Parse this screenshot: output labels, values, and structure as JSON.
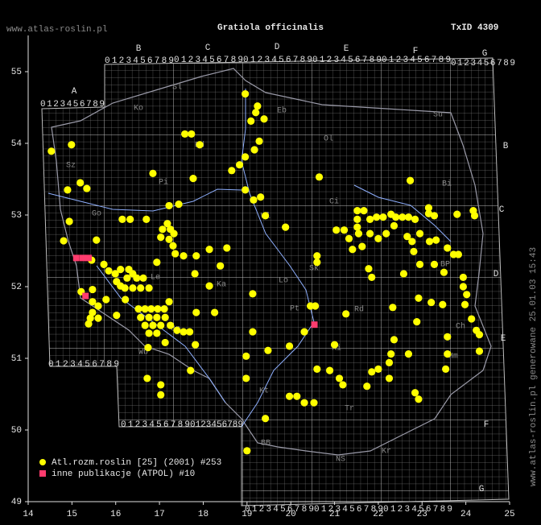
{
  "header": {
    "site": "www.atlas-roslin.pl",
    "title": "Gratiola officinalis",
    "taxon_id": "TxID 4309"
  },
  "footer": {
    "generated": "www.atlas-roslin.pl generowane 25.01.03 15:43"
  },
  "atpol": {
    "letters": [
      "A",
      "B",
      "C",
      "D",
      "E",
      "F",
      "G"
    ],
    "digits": "0123456789"
  },
  "regions": [
    "Sl",
    "Ko",
    "Eb",
    "Su",
    "Ol",
    "Sz",
    "Bd",
    "Pi",
    "Bi",
    "Ci",
    "Go",
    "Wl",
    "Le",
    "Ka",
    "Lo",
    "Sk",
    "BP",
    "Pt",
    "Rd",
    "Ch",
    "Wb",
    "Op",
    "Ki",
    "Hm",
    "Kt",
    "Tr",
    "BB",
    "NS",
    "Kr"
  ],
  "chart_data": {
    "type": "scatter",
    "xlim": [
      14,
      25
    ],
    "ylim": [
      49,
      55.5
    ],
    "xticks": [
      14,
      15,
      16,
      17,
      18,
      19,
      20,
      21,
      22,
      23,
      24,
      25
    ],
    "yticks": [
      49,
      50,
      51,
      52,
      53,
      54,
      55
    ],
    "series": [
      {
        "name": "Atl.rozm.roslin [25] (2001) #253",
        "color": "#ffff00",
        "marker": "circle",
        "x": [
          14.53,
          14.99,
          15.19,
          14.9,
          15.34,
          14.94,
          14.81,
          15.56,
          15.45,
          15.73,
          15.84,
          15.99,
          16.11,
          16.3,
          16.02,
          16.11,
          16.26,
          16.39,
          16.48,
          16.63,
          16.21,
          16.39,
          16.57,
          16.76,
          15.21,
          15.47,
          15.47,
          15.47,
          15.6,
          15.42,
          15.38,
          15.6,
          15.78,
          16.02,
          16.22,
          16.52,
          16.67,
          16.81,
          16.96,
          17.11,
          17.22,
          16.57,
          16.76,
          16.94,
          17.13,
          16.67,
          16.85,
          17.03,
          16.76,
          16.94,
          17.25,
          17.4,
          17.55,
          17.69,
          17.13,
          17.82,
          16.74,
          18.96,
          19.24,
          19.2,
          19.39,
          19.09,
          17.58,
          17.73,
          17.92,
          16.85,
          17.77,
          17.44,
          18.65,
          18.83,
          18.96,
          19.17,
          19.28,
          18.96,
          19.15,
          19.31,
          19.42,
          17.22,
          16.15,
          16.33,
          16.7,
          17.18,
          17.07,
          17.25,
          17.33,
          17.03,
          17.22,
          17.31,
          17.36,
          17.55,
          17.84,
          18.14,
          18.54,
          16.94,
          17.81,
          18.14,
          18.39,
          17.84,
          18.26,
          17.71,
          16.72,
          17.03,
          17.03,
          18.98,
          18.98,
          19.0,
          19.13,
          19.13,
          19.48,
          19.42,
          19.88,
          20.65,
          19.97,
          20.45,
          20.56,
          20.31,
          21.0,
          20.89,
          21.11,
          21.19,
          19.97,
          20.14,
          20.31,
          20.53,
          21.52,
          21.52,
          21.52,
          21.67,
          21.81,
          21.96,
          22.11,
          22.29,
          22.4,
          22.55,
          22.69,
          22.84,
          23.15,
          23.15,
          23.28,
          23.8,
          24.17,
          24.2,
          22.73,
          21.04,
          21.22,
          21.33,
          21.55,
          21.41,
          21.63,
          21.81,
          22.0,
          22.18,
          22.36,
          22.66,
          22.77,
          22.95,
          23.17,
          23.32,
          23.58,
          23.72,
          23.83,
          22.81,
          22.95,
          23.28,
          23.5,
          22.58,
          20.6,
          20.6,
          21.78,
          21.85,
          22.33,
          22.92,
          23.21,
          23.47,
          23.94,
          23.94,
          24.02,
          23.98,
          24.13,
          24.24,
          24.31,
          24.31,
          23.58,
          22.88,
          22.69,
          22.29,
          22.25,
          22.0,
          21.85,
          21.74,
          22.25,
          22.84,
          22.92,
          23.58,
          23.54,
          22.36,
          21.26,
          20.6
        ],
        "values": [
          53.89,
          53.98,
          53.45,
          53.35,
          53.37,
          52.91,
          52.64,
          52.65,
          52.37,
          52.31,
          52.22,
          52.18,
          52.24,
          52.24,
          52.07,
          52.01,
          52.12,
          52.18,
          52.12,
          52.12,
          51.98,
          51.98,
          51.98,
          51.98,
          51.93,
          51.96,
          51.79,
          51.64,
          51.73,
          51.56,
          51.48,
          51.56,
          51.82,
          51.6,
          51.82,
          51.69,
          51.69,
          51.69,
          51.69,
          51.69,
          51.79,
          51.57,
          51.57,
          51.57,
          51.57,
          51.46,
          51.46,
          51.46,
          51.35,
          51.35,
          51.46,
          51.39,
          51.37,
          51.37,
          51.22,
          51.19,
          51.15,
          54.69,
          54.52,
          54.43,
          54.34,
          54.31,
          54.13,
          54.13,
          53.98,
          53.58,
          53.51,
          53.15,
          53.62,
          53.7,
          53.81,
          53.91,
          54.03,
          53.35,
          53.21,
          53.25,
          52.99,
          53.13,
          52.94,
          52.94,
          52.94,
          52.88,
          52.8,
          52.8,
          52.74,
          52.69,
          52.66,
          52.57,
          52.46,
          52.43,
          52.43,
          52.52,
          52.54,
          52.34,
          52.18,
          52.01,
          52.29,
          51.64,
          51.64,
          50.83,
          50.72,
          50.63,
          50.49,
          51.03,
          50.72,
          49.71,
          51.37,
          51.9,
          51.11,
          50.16,
          52.83,
          53.53,
          51.17,
          51.73,
          51.73,
          51.37,
          51.19,
          50.83,
          50.72,
          50.63,
          50.47,
          50.47,
          50.38,
          50.38,
          53.06,
          52.94,
          52.83,
          53.06,
          52.94,
          52.97,
          52.97,
          53.01,
          52.97,
          52.97,
          52.97,
          52.94,
          53.1,
          53.02,
          52.99,
          53.01,
          53.06,
          52.99,
          53.48,
          52.79,
          52.79,
          52.67,
          52.74,
          52.52,
          52.56,
          52.74,
          52.67,
          52.74,
          52.85,
          52.7,
          52.63,
          52.74,
          52.63,
          52.65,
          52.54,
          52.45,
          52.45,
          52.49,
          52.31,
          52.31,
          52.2,
          52.18,
          52.43,
          52.34,
          52.25,
          52.13,
          51.71,
          51.84,
          51.78,
          51.75,
          52.13,
          52.0,
          51.89,
          51.75,
          51.55,
          51.39,
          51.33,
          51.1,
          51.3,
          51.51,
          51.06,
          51.06,
          50.94,
          50.85,
          50.81,
          50.61,
          50.72,
          50.52,
          50.43,
          51.06,
          50.85,
          51.26,
          51.62,
          50.85
        ]
      },
      {
        "name": "inne publikacje (ATPOL) #10",
        "color": "#ff3c6e",
        "marker": "square",
        "x": [
          15.1,
          15.25,
          15.38,
          15.31,
          20.54
        ],
        "values": [
          52.4,
          52.4,
          52.4,
          51.87,
          51.47
        ]
      }
    ]
  }
}
